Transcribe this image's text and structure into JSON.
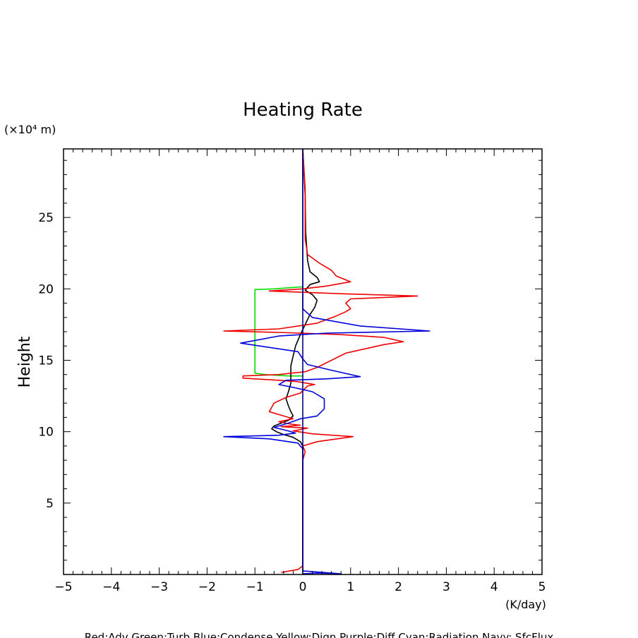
{
  "chart_data": {
    "type": "line",
    "title": "Heating Rate",
    "xlabel": "(K/day)",
    "ylabel": "Height",
    "y_unit": "(×10⁴ m)",
    "xlim": [
      -5,
      5
    ],
    "ylim": [
      0,
      29.8
    ],
    "x_ticks": [
      -5,
      -4,
      -3,
      -2,
      -1,
      0,
      1,
      2,
      3,
      4,
      5
    ],
    "x_tick_labels": [
      "−5",
      "−4",
      "−3",
      "−2",
      "−1",
      "0",
      "1",
      "2",
      "3",
      "4",
      "5"
    ],
    "y_ticks": [
      5,
      10,
      15,
      20,
      25
    ],
    "y_tick_labels": [
      "5",
      "10",
      "15",
      "20",
      "25"
    ],
    "grid": false,
    "footer": "Red:Adv  Green:Turb  Blue:Condense  Yellow:Dign  Purple:Diff  Cyan:Radiation  Navy: SfcFlux",
    "series": [
      {
        "name": "Turb",
        "color": "#00dd00",
        "points": [
          [
            0.0,
            13.9
          ],
          [
            -0.3,
            13.9
          ],
          [
            -0.8,
            14.0
          ],
          [
            -1.0,
            14.1
          ],
          [
            -1.0,
            15.5
          ],
          [
            -1.0,
            17.5
          ],
          [
            -1.0,
            19.0
          ],
          [
            -1.0,
            19.95
          ],
          [
            -0.6,
            20.0
          ],
          [
            -0.2,
            20.1
          ],
          [
            0.0,
            20.15
          ]
        ]
      },
      {
        "name": "Radiation",
        "color": "#000000",
        "points": [
          [
            0.0,
            0.2
          ],
          [
            0.0,
            5.0
          ],
          [
            0.0,
            8.5
          ],
          [
            0.0,
            9.0
          ],
          [
            -0.05,
            9.3
          ],
          [
            -0.2,
            9.6
          ],
          [
            -0.4,
            9.8
          ],
          [
            -0.55,
            10.0
          ],
          [
            -0.65,
            10.2
          ],
          [
            -0.6,
            10.4
          ],
          [
            -0.45,
            10.6
          ],
          [
            -0.3,
            10.8
          ],
          [
            -0.2,
            11.1
          ],
          [
            -0.25,
            11.4
          ],
          [
            -0.3,
            11.8
          ],
          [
            -0.35,
            12.3
          ],
          [
            -0.3,
            12.8
          ],
          [
            -0.25,
            13.4
          ],
          [
            -0.25,
            14.0
          ],
          [
            -0.25,
            14.6
          ],
          [
            -0.2,
            15.3
          ],
          [
            -0.15,
            16.0
          ],
          [
            -0.05,
            16.8
          ],
          [
            0.05,
            17.5
          ],
          [
            0.15,
            18.2
          ],
          [
            0.25,
            18.7
          ],
          [
            0.3,
            19.2
          ],
          [
            0.2,
            19.6
          ],
          [
            0.05,
            19.9
          ],
          [
            0.15,
            20.3
          ],
          [
            0.35,
            20.5
          ],
          [
            0.3,
            20.8
          ],
          [
            0.15,
            21.2
          ],
          [
            0.1,
            22.0
          ],
          [
            0.06,
            24.0
          ],
          [
            0.05,
            26.5
          ],
          [
            0.02,
            28.5
          ],
          [
            0.0,
            29.8
          ]
        ]
      },
      {
        "name": "Adv",
        "color": "#ee0000",
        "points": [
          [
            -0.45,
            0.15
          ],
          [
            -0.1,
            0.35
          ],
          [
            0.0,
            0.6
          ],
          [
            0.0,
            3.0
          ],
          [
            0.0,
            8.0
          ],
          [
            0.05,
            8.6
          ],
          [
            0.0,
            9.0
          ],
          [
            0.3,
            9.3
          ],
          [
            1.05,
            9.65
          ],
          [
            0.2,
            9.85
          ],
          [
            -0.2,
            10.05
          ],
          [
            0.1,
            10.25
          ],
          [
            -0.45,
            10.35
          ],
          [
            -0.05,
            10.45
          ],
          [
            -0.3,
            10.55
          ],
          [
            -0.5,
            10.7
          ],
          [
            -0.2,
            10.9
          ],
          [
            -0.5,
            11.2
          ],
          [
            -0.7,
            11.4
          ],
          [
            -0.6,
            12.0
          ],
          [
            -0.35,
            12.4
          ],
          [
            -0.05,
            12.7
          ],
          [
            0.1,
            13.2
          ],
          [
            0.25,
            13.3
          ],
          [
            -0.1,
            13.5
          ],
          [
            -0.5,
            13.6
          ],
          [
            -1.25,
            13.75
          ],
          [
            -1.25,
            13.9
          ],
          [
            -0.5,
            14.0
          ],
          [
            0.05,
            14.2
          ],
          [
            0.3,
            14.5
          ],
          [
            0.6,
            15.0
          ],
          [
            0.9,
            15.5
          ],
          [
            1.3,
            15.8
          ],
          [
            1.7,
            16.1
          ],
          [
            2.1,
            16.3
          ],
          [
            1.7,
            16.6
          ],
          [
            0.8,
            16.8
          ],
          [
            -0.5,
            16.95
          ],
          [
            -1.65,
            17.05
          ],
          [
            -0.5,
            17.2
          ],
          [
            0.3,
            17.6
          ],
          [
            0.7,
            18.1
          ],
          [
            0.9,
            18.4
          ],
          [
            1.0,
            18.6
          ],
          [
            0.9,
            19.0
          ],
          [
            1.0,
            19.3
          ],
          [
            2.4,
            19.5
          ],
          [
            0.9,
            19.65
          ],
          [
            -0.7,
            19.85
          ],
          [
            0.0,
            20.0
          ],
          [
            0.5,
            20.2
          ],
          [
            1.0,
            20.5
          ],
          [
            0.7,
            20.9
          ],
          [
            0.6,
            21.3
          ],
          [
            0.35,
            21.8
          ],
          [
            0.1,
            22.4
          ],
          [
            0.05,
            23.5
          ],
          [
            0.05,
            25.5
          ],
          [
            0.05,
            27.0
          ],
          [
            0.0,
            29.8
          ]
        ]
      },
      {
        "name": "Condense",
        "color": "#0000dd",
        "points": [
          [
            0.0,
            0.05
          ],
          [
            0.3,
            0.1
          ],
          [
            0.8,
            0.05
          ],
          [
            0.0,
            0.25
          ],
          [
            0.0,
            5.0
          ],
          [
            0.0,
            8.8
          ],
          [
            -0.1,
            9.2
          ],
          [
            -0.7,
            9.5
          ],
          [
            -1.65,
            9.65
          ],
          [
            -0.5,
            9.75
          ],
          [
            -0.15,
            9.9
          ],
          [
            -0.3,
            10.05
          ],
          [
            -0.6,
            10.3
          ],
          [
            -0.3,
            10.6
          ],
          [
            -0.05,
            10.9
          ],
          [
            0.3,
            11.1
          ],
          [
            0.45,
            11.6
          ],
          [
            0.45,
            12.3
          ],
          [
            0.2,
            12.8
          ],
          [
            -0.2,
            13.1
          ],
          [
            -0.5,
            13.3
          ],
          [
            -0.35,
            13.6
          ],
          [
            0.5,
            13.7
          ],
          [
            1.2,
            13.85
          ],
          [
            0.6,
            14.3
          ],
          [
            0.1,
            14.7
          ],
          [
            0.0,
            15.1
          ],
          [
            -0.1,
            15.6
          ],
          [
            -1.3,
            16.2
          ],
          [
            -0.5,
            16.7
          ],
          [
            0.5,
            16.9
          ],
          [
            2.65,
            17.05
          ],
          [
            1.2,
            17.4
          ],
          [
            0.2,
            18.0
          ],
          [
            0.0,
            18.6
          ],
          [
            0.0,
            20.0
          ],
          [
            0.0,
            25.0
          ],
          [
            0.0,
            29.8
          ]
        ]
      },
      {
        "name": "SfcFlux",
        "color": "#000080",
        "points": [
          [
            0.0,
            0.0
          ],
          [
            0.0,
            29.8
          ]
        ]
      }
    ]
  }
}
